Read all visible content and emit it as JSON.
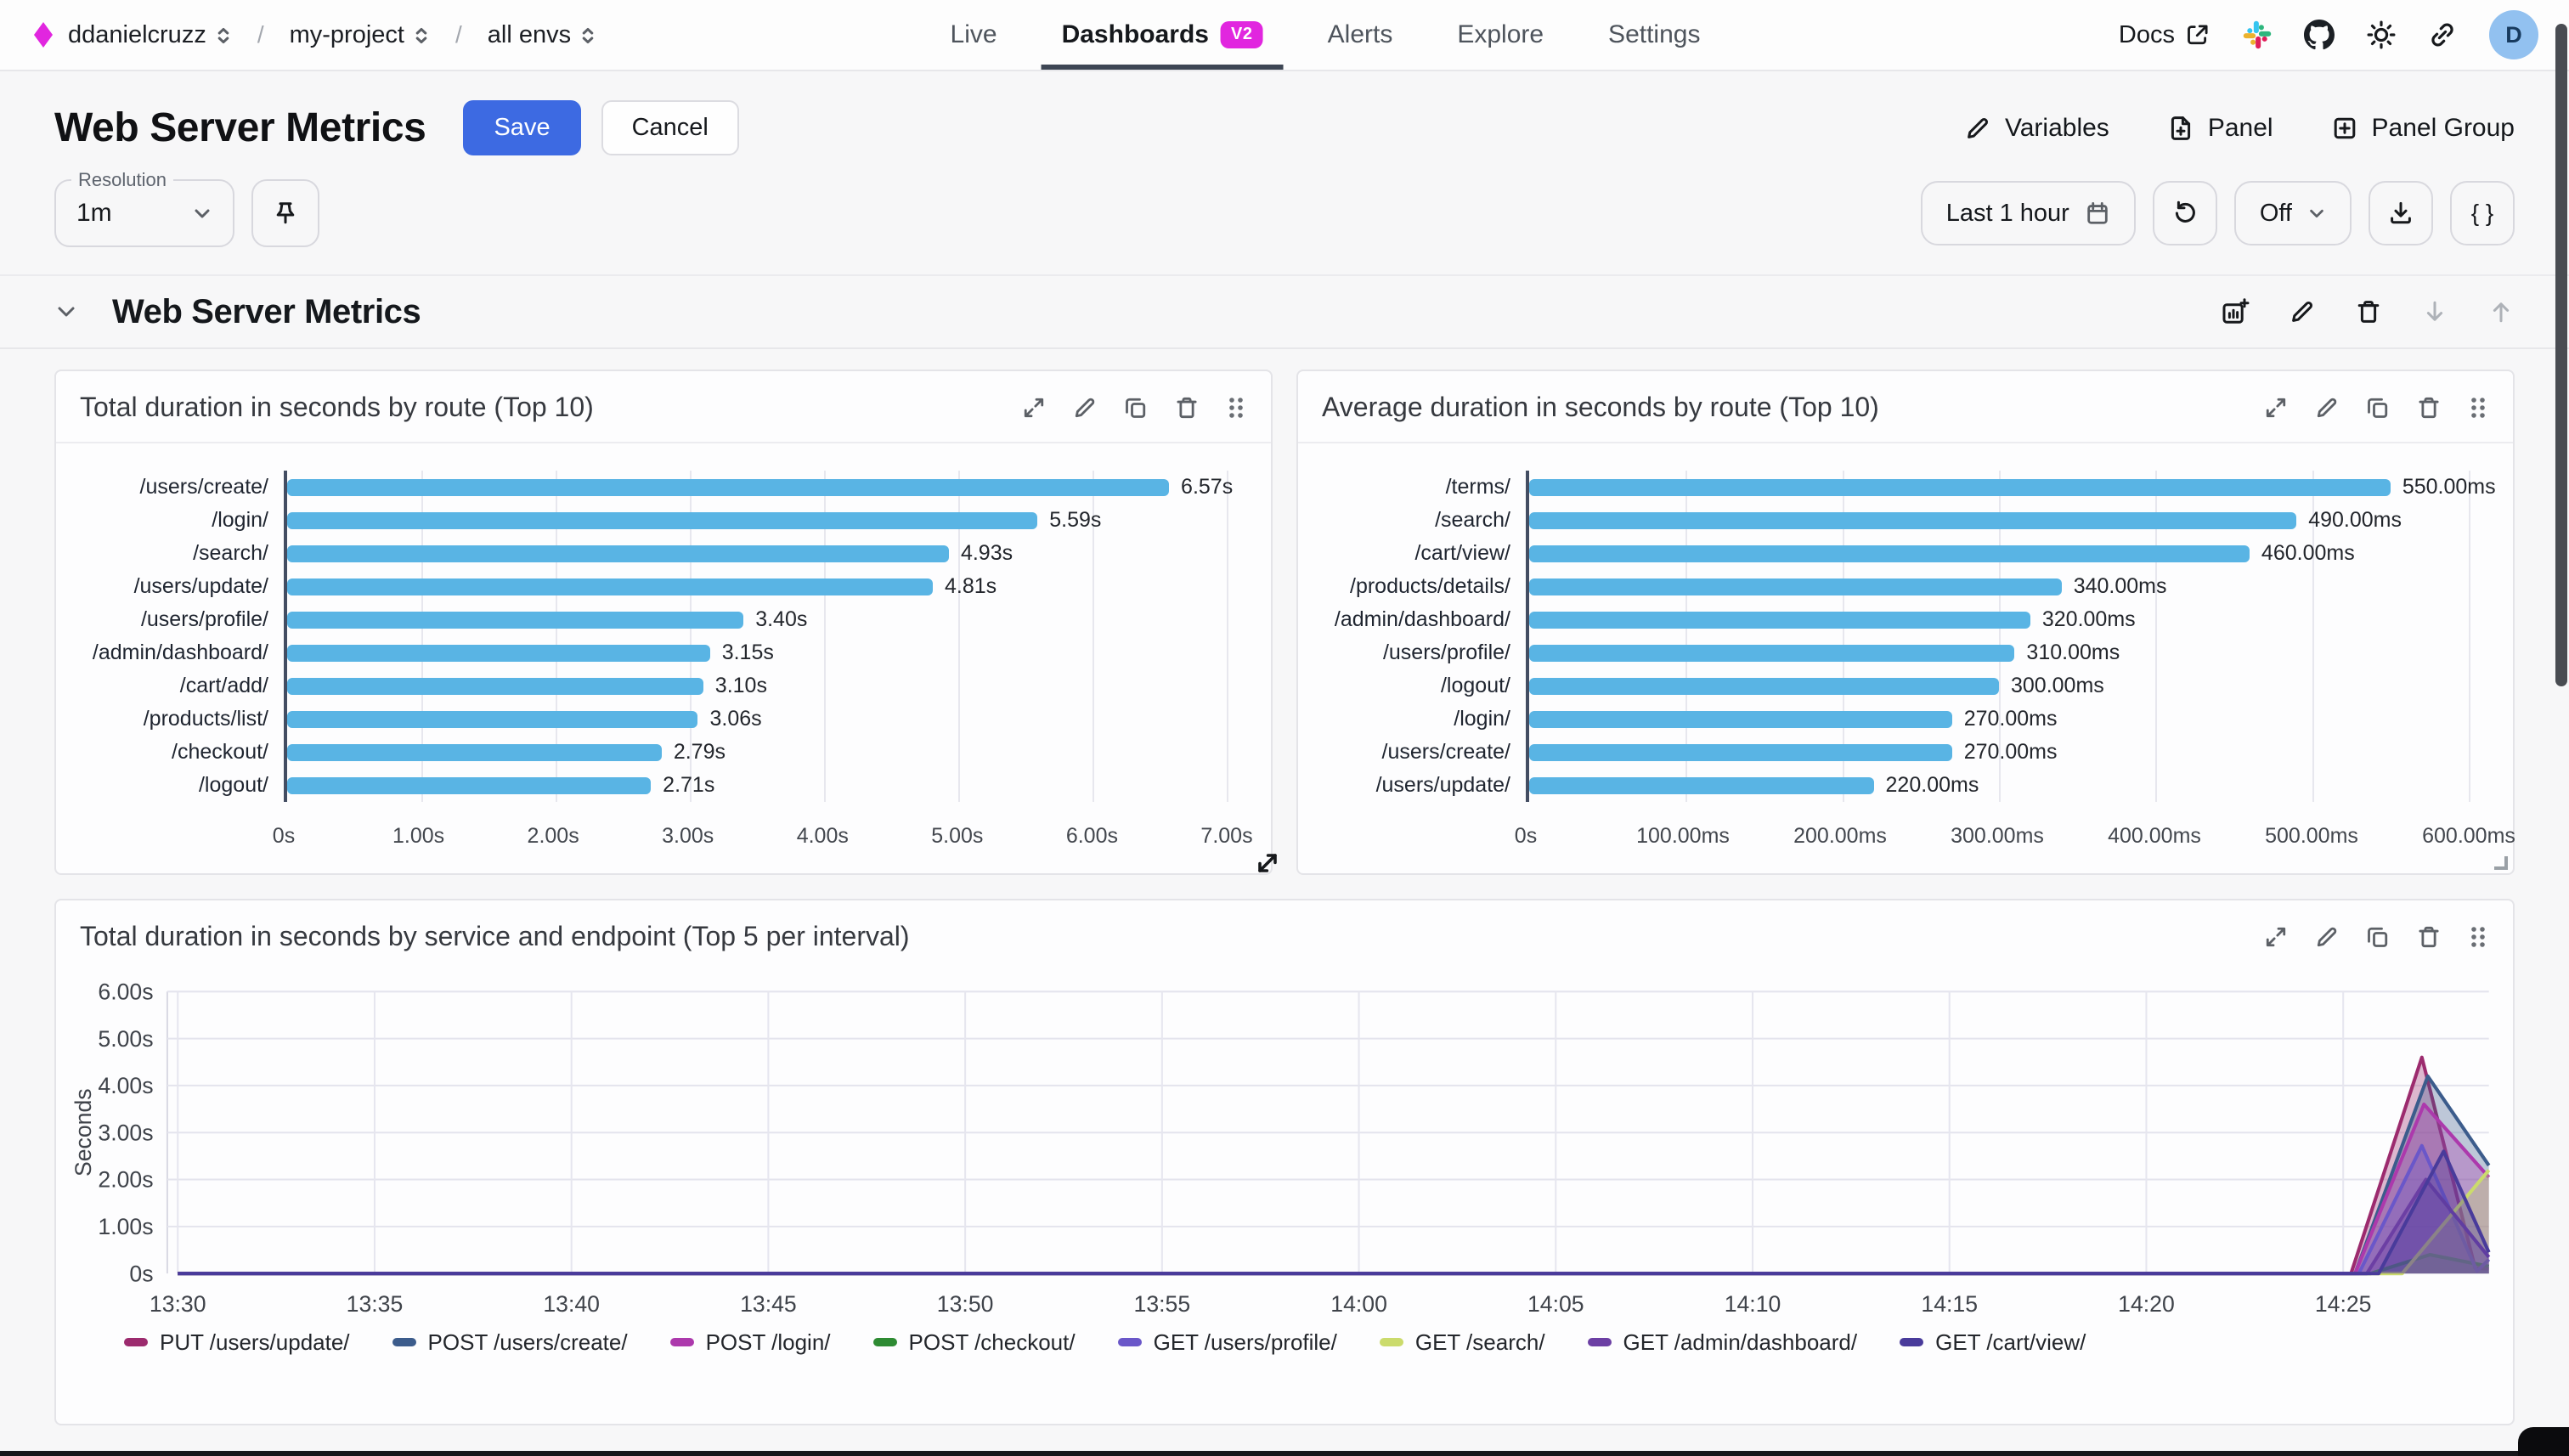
{
  "nav": {
    "breadcrumb": [
      {
        "label": "ddanielcruzz"
      },
      {
        "label": "my-project"
      },
      {
        "label": "all envs"
      }
    ],
    "tabs": [
      {
        "label": "Live"
      },
      {
        "label": "Dashboards",
        "badge": "V2"
      },
      {
        "label": "Alerts"
      },
      {
        "label": "Explore"
      },
      {
        "label": "Settings"
      }
    ],
    "docs_label": "Docs",
    "avatar_initial": "D"
  },
  "header": {
    "title": "Web Server Metrics",
    "save_label": "Save",
    "cancel_label": "Cancel",
    "variables_label": "Variables",
    "panel_label": "Panel",
    "panel_group_label": "Panel Group"
  },
  "controls": {
    "resolution_label": "Resolution",
    "resolution_value": "1m",
    "time_range": "Last 1 hour",
    "refresh_interval": "Off",
    "braces_label": "{ }"
  },
  "group": {
    "title": "Web Server Metrics"
  },
  "colors": {
    "accent_magenta": "#e126df",
    "save_blue": "#3d6ae2",
    "bar_blue": "#59b4e4",
    "active_tab_underline": "#3d4654"
  },
  "chart_data": [
    {
      "type": "bar",
      "orientation": "horizontal",
      "title": "Total duration in seconds by route (Top 10)",
      "categories": [
        "/users/create/",
        "/login/",
        "/search/",
        "/users/update/",
        "/users/profile/",
        "/admin/dashboard/",
        "/cart/add/",
        "/products/list/",
        "/checkout/",
        "/logout/"
      ],
      "values": [
        6.57,
        5.59,
        4.93,
        4.81,
        3.4,
        3.15,
        3.1,
        3.06,
        2.79,
        2.71
      ],
      "value_labels": [
        "6.57s",
        "5.59s",
        "4.93s",
        "4.81s",
        "3.40s",
        "3.15s",
        "3.10s",
        "3.06s",
        "2.79s",
        "2.71s"
      ],
      "xlim": [
        0,
        7
      ],
      "xticks": [
        {
          "label": "0s",
          "value": 0
        },
        {
          "label": "1.00s",
          "value": 1
        },
        {
          "label": "2.00s",
          "value": 2
        },
        {
          "label": "3.00s",
          "value": 3
        },
        {
          "label": "4.00s",
          "value": 4
        },
        {
          "label": "5.00s",
          "value": 5
        },
        {
          "label": "6.00s",
          "value": 6
        },
        {
          "label": "7.00s",
          "value": 7
        }
      ],
      "bar_color": "#59b4e4"
    },
    {
      "type": "bar",
      "orientation": "horizontal",
      "title": "Average duration in seconds by route (Top 10)",
      "categories": [
        "/terms/",
        "/search/",
        "/cart/view/",
        "/products/details/",
        "/admin/dashboard/",
        "/users/profile/",
        "/logout/",
        "/login/",
        "/users/create/",
        "/users/update/"
      ],
      "values": [
        550,
        490,
        460,
        340,
        320,
        310,
        300,
        270,
        270,
        220
      ],
      "value_labels": [
        "550.00ms",
        "490.00ms",
        "460.00ms",
        "340.00ms",
        "320.00ms",
        "310.00ms",
        "300.00ms",
        "270.00ms",
        "270.00ms",
        "220.00ms"
      ],
      "xlim": [
        0,
        600
      ],
      "xticks": [
        {
          "label": "0s",
          "value": 0
        },
        {
          "label": "100.00ms",
          "value": 100
        },
        {
          "label": "200.00ms",
          "value": 200
        },
        {
          "label": "300.00ms",
          "value": 300
        },
        {
          "label": "400.00ms",
          "value": 400
        },
        {
          "label": "500.00ms",
          "value": 500
        },
        {
          "label": "600.00ms",
          "value": 600
        }
      ],
      "bar_color": "#59b4e4"
    },
    {
      "type": "area",
      "title": "Total duration in seconds by service and endpoint (Top 5 per interval)",
      "ylabel": "Seconds",
      "ylim": [
        0,
        6
      ],
      "yticks": [
        {
          "label": "0s",
          "value": 0
        },
        {
          "label": "1.00s",
          "value": 1
        },
        {
          "label": "2.00s",
          "value": 2
        },
        {
          "label": "3.00s",
          "value": 3
        },
        {
          "label": "4.00s",
          "value": 4
        },
        {
          "label": "5.00s",
          "value": 5
        },
        {
          "label": "6.00s",
          "value": 6
        }
      ],
      "x_minutes_range": [
        0,
        58.7
      ],
      "xticks": [
        {
          "label": "13:30",
          "t": 0
        },
        {
          "label": "13:35",
          "t": 5
        },
        {
          "label": "13:40",
          "t": 10
        },
        {
          "label": "13:45",
          "t": 15
        },
        {
          "label": "13:50",
          "t": 20
        },
        {
          "label": "13:55",
          "t": 25
        },
        {
          "label": "14:00",
          "t": 30
        },
        {
          "label": "14:05",
          "t": 35
        },
        {
          "label": "14:10",
          "t": 40
        },
        {
          "label": "14:15",
          "t": 45
        },
        {
          "label": "14:20",
          "t": 50
        },
        {
          "label": "14:25",
          "t": 55
        }
      ],
      "series": [
        {
          "name": "PUT /users/update/",
          "color": "#9c2b6e",
          "points": [
            [
              0,
              0
            ],
            [
              55.2,
              0
            ],
            [
              57.0,
              4.6
            ],
            [
              58.35,
              0.12
            ],
            [
              58.7,
              0.1
            ]
          ]
        },
        {
          "name": "POST /users/create/",
          "color": "#3c5c8c",
          "points": [
            [
              0,
              0
            ],
            [
              55.3,
              0
            ],
            [
              57.15,
              4.2
            ],
            [
              58.7,
              2.3
            ]
          ]
        },
        {
          "name": "POST /login/",
          "color": "#ac39ac",
          "points": [
            [
              0,
              0
            ],
            [
              55.3,
              0
            ],
            [
              57.05,
              3.6
            ],
            [
              58.7,
              2.05
            ]
          ]
        },
        {
          "name": "POST /checkout/",
          "color": "#2e8b33",
          "points": [
            [
              0,
              0
            ],
            [
              55.7,
              0
            ],
            [
              57.2,
              0.4
            ],
            [
              58.7,
              0.15
            ]
          ]
        },
        {
          "name": "GET /users/profile/",
          "color": "#6a57c9",
          "points": [
            [
              0,
              0
            ],
            [
              55.4,
              0
            ],
            [
              57.0,
              2.72
            ],
            [
              58.4,
              0.05
            ],
            [
              58.7,
              0.3
            ]
          ]
        },
        {
          "name": "GET /search/",
          "color": "#cbdb6c",
          "points": [
            [
              0,
              0
            ],
            [
              56.5,
              0
            ],
            [
              58.7,
              2.2
            ]
          ]
        },
        {
          "name": "GET /admin/dashboard/",
          "color": "#6c3fa4",
          "points": [
            [
              0,
              0
            ],
            [
              55.6,
              0
            ],
            [
              57.1,
              2.0
            ],
            [
              58.7,
              0.35
            ]
          ]
        },
        {
          "name": "GET /cart/view/",
          "color": "#493b9b",
          "points": [
            [
              0,
              0
            ],
            [
              55.9,
              0
            ],
            [
              57.55,
              2.6
            ],
            [
              58.7,
              0.45
            ]
          ]
        }
      ]
    }
  ]
}
